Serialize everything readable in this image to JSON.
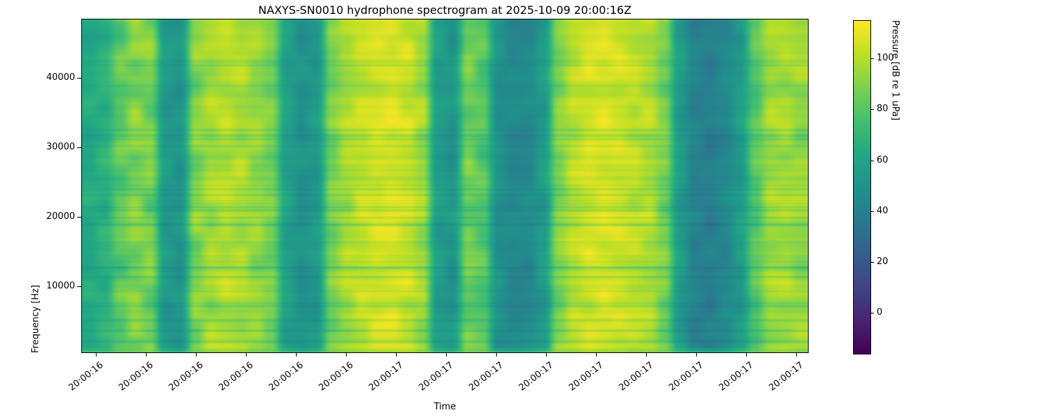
{
  "figure": {
    "title": "NAXYS-SN0010 hydrophone spectrogram at 2025-10-09 20:00:16Z",
    "xlabel": "Time",
    "ylabel": "Frequency [Hz]",
    "colorbar_label": "Pressure [dB re 1 uPa]"
  },
  "colors": {
    "background": "#ffffff",
    "text": "#000000",
    "spine": "#000000",
    "colormap_low": "#440154",
    "colormap_high": "#fde725"
  },
  "chart_data": {
    "type": "heatmap",
    "subtype": "spectrogram",
    "title": "NAXYS-SN0010 hydrophone spectrogram at 2025-10-09 20:00:16Z",
    "xlabel": "Time",
    "ylabel": "Frequency [Hz]",
    "grid": false,
    "x_ticklabels": [
      "20:00:16",
      "20:00:16",
      "20:00:16",
      "20:00:16",
      "20:00:16",
      "20:00:16",
      "20:00:17",
      "20:00:17",
      "20:00:17",
      "20:00:17",
      "20:00:17",
      "20:00:17",
      "20:00:17",
      "20:00:17",
      "20:00:17"
    ],
    "y_ticks": [
      10000,
      20000,
      30000,
      40000
    ],
    "y_range_hz": [
      600,
      48400
    ],
    "colorbar": {
      "label": "Pressure [dB re 1 uPa]",
      "ticks": [
        0,
        20,
        40,
        60,
        80,
        100
      ],
      "vmin": -16,
      "vmax": 115,
      "colormap": "viridis"
    },
    "time_column_levels_db": [
      63,
      67,
      82,
      90,
      88,
      54,
      52,
      90,
      97,
      100,
      98,
      94,
      88,
      58,
      50,
      54,
      88,
      98,
      103,
      106,
      107,
      104,
      96,
      56,
      52,
      86,
      80,
      50,
      45,
      46,
      55,
      90,
      101,
      106,
      107,
      105,
      102,
      99,
      88,
      55,
      42,
      40,
      45,
      55,
      80,
      96,
      97,
      94
    ],
    "time_column_variation_db": [
      5,
      6,
      9,
      10,
      10,
      5,
      5,
      10,
      7,
      6,
      6,
      7,
      6,
      5,
      5,
      5,
      7,
      6,
      6,
      5,
      5,
      6,
      7,
      5,
      6,
      8,
      8,
      5,
      5,
      5,
      6,
      7,
      6,
      5,
      5,
      5,
      6,
      6,
      7,
      5,
      5,
      5,
      5,
      6,
      7,
      6,
      6,
      7
    ],
    "low_freq_floor_db": 86,
    "colormap_anchors_rgb": [
      [
        68,
        1,
        84
      ],
      [
        72,
        36,
        117
      ],
      [
        65,
        68,
        135
      ],
      [
        53,
        95,
        141
      ],
      [
        42,
        120,
        142
      ],
      [
        33,
        145,
        140
      ],
      [
        34,
        168,
        132
      ],
      [
        68,
        190,
        112
      ],
      [
        122,
        209,
        81
      ],
      [
        189,
        223,
        38
      ],
      [
        253,
        231,
        37
      ]
    ]
  }
}
